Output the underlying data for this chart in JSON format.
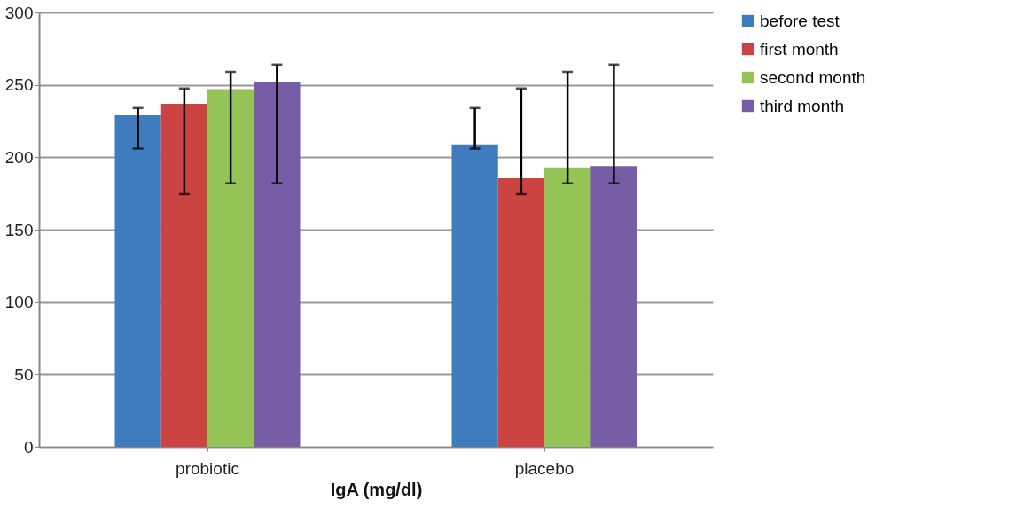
{
  "chart_data": {
    "type": "bar",
    "xlabel": "IgA (mg/dl)",
    "categories": [
      "probiotic",
      "placebo"
    ],
    "series": [
      {
        "name": "before test",
        "color": "#3f7bbf",
        "values": [
          229,
          209
        ],
        "errors": [
          [
            206,
            234
          ],
          [
            206,
            234
          ]
        ]
      },
      {
        "name": "first month",
        "color": "#cc4441",
        "values": [
          237,
          185.5
        ],
        "errors": [
          [
            174.5,
            247.5
          ],
          [
            174.5,
            247.5
          ]
        ]
      },
      {
        "name": "second month",
        "color": "#93c455",
        "values": [
          247,
          193
        ],
        "errors": [
          [
            182,
            259
          ],
          [
            182,
            259
          ]
        ]
      },
      {
        "name": "third month",
        "color": "#775ca6",
        "values": [
          252,
          194
        ],
        "errors": [
          [
            182,
            264
          ],
          [
            182,
            264
          ]
        ]
      }
    ],
    "ylim": [
      0,
      300
    ],
    "yticks": [
      0,
      50,
      100,
      150,
      200,
      250,
      300
    ],
    "grid": "y",
    "legend": "right"
  }
}
